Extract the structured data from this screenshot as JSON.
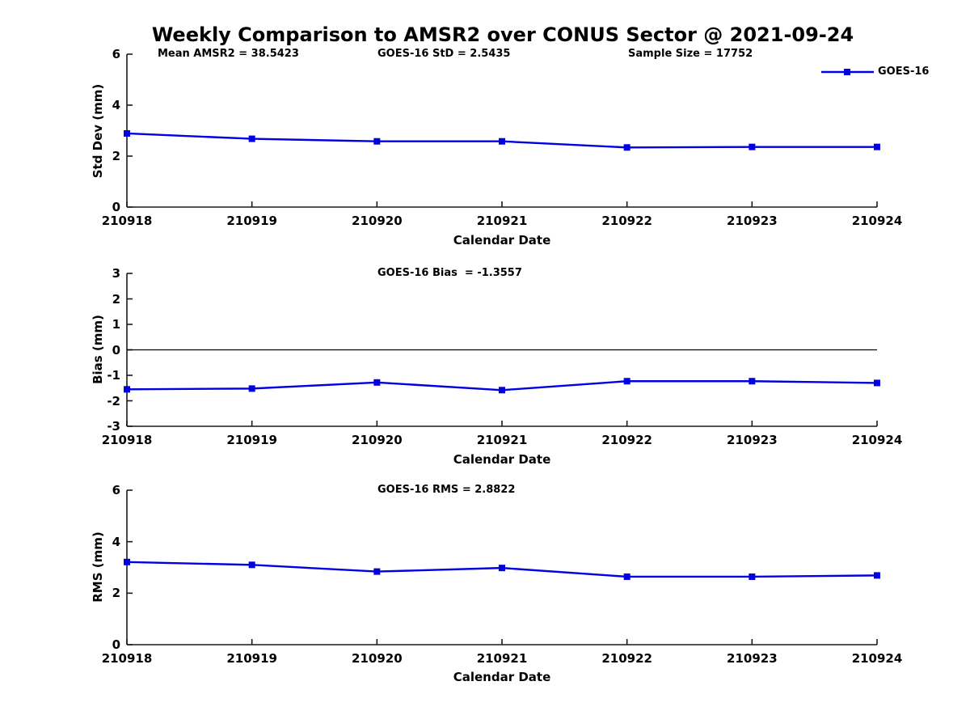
{
  "page": {
    "title": "Weekly Comparison to AMSR2 over CONUS Sector @ 2021-09-24"
  },
  "chart_data": [
    {
      "id": "std-dev",
      "type": "line",
      "xlabel": "Calendar Date",
      "ylabel": "Std Dev (mm)",
      "ylim": [
        0,
        6
      ],
      "yticks": [
        0,
        2,
        4,
        6
      ],
      "categories": [
        "210918",
        "210919",
        "210920",
        "210921",
        "210922",
        "210923",
        "210924"
      ],
      "series": [
        {
          "name": "GOES-16",
          "color": "#0000E0",
          "marker": "square",
          "values": [
            2.89,
            2.68,
            2.58,
            2.58,
            2.34,
            2.36,
            2.36
          ]
        }
      ],
      "annotations": [
        {
          "text": "Mean AMSR2 = 38.5423"
        },
        {
          "text": "GOES-16 StD = 2.5435"
        },
        {
          "text": "Sample Size = 17752"
        }
      ],
      "legend": {
        "label": "GOES-16",
        "position": "top-right"
      },
      "zero_line": false,
      "grid": false
    },
    {
      "id": "bias",
      "type": "line",
      "xlabel": "Calendar Date",
      "ylabel": "Bias (mm)",
      "ylim": [
        -3,
        3
      ],
      "yticks": [
        3,
        2,
        1,
        0,
        -1,
        -2,
        -3
      ],
      "categories": [
        "210918",
        "210919",
        "210920",
        "210921",
        "210922",
        "210923",
        "210924"
      ],
      "series": [
        {
          "name": "GOES-16",
          "color": "#0000E0",
          "marker": "square",
          "values": [
            -1.55,
            -1.52,
            -1.28,
            -1.58,
            -1.23,
            -1.23,
            -1.3
          ]
        }
      ],
      "annotations": [
        {
          "text": "GOES-16 Bias  = -1.3557"
        }
      ],
      "zero_line": true,
      "grid": false
    },
    {
      "id": "rms",
      "type": "line",
      "xlabel": "Calendar Date",
      "ylabel": "RMS (mm)",
      "ylim": [
        0,
        6
      ],
      "yticks": [
        0,
        2,
        4,
        6
      ],
      "categories": [
        "210918",
        "210919",
        "210920",
        "210921",
        "210922",
        "210923",
        "210924"
      ],
      "series": [
        {
          "name": "GOES-16",
          "color": "#0000E0",
          "marker": "square",
          "values": [
            3.21,
            3.1,
            2.84,
            2.98,
            2.64,
            2.64,
            2.69
          ]
        }
      ],
      "annotations": [
        {
          "text": "GOES-16 RMS = 2.8822"
        }
      ],
      "zero_line": false,
      "grid": false
    }
  ]
}
